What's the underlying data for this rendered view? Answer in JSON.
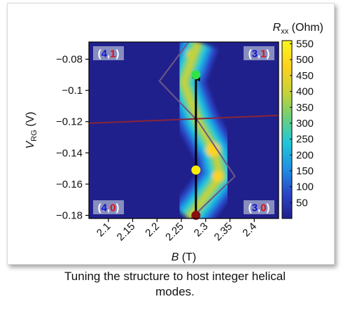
{
  "caption": {
    "line1": "Tuning the structure to host integer helical",
    "line2": "modes."
  },
  "chart_data": {
    "type": "heatmap",
    "xlabel_var": "B",
    "xlabel_unit": " (T)",
    "ylabel_var": "V",
    "ylabel_sub": "RG",
    "ylabel_unit": " (V)",
    "xlim": [
      2.06,
      2.45
    ],
    "ylim": [
      -0.182,
      -0.069
    ],
    "x_ticks": [
      2.1,
      2.15,
      2.2,
      2.25,
      2.3,
      2.35,
      2.4
    ],
    "x_tick_labels": [
      "2.1",
      "2.15",
      "2.2",
      "2.25",
      "2.3",
      "2.35",
      "2.4"
    ],
    "y_ticks": [
      -0.08,
      -0.1,
      -0.12,
      -0.14,
      -0.16,
      -0.18
    ],
    "y_tick_labels": [
      "−0.08",
      "−0.1",
      "−0.12",
      "−0.14",
      "−0.16",
      "−0.18"
    ],
    "colorbar": {
      "title_var": "R",
      "title_sub": "xx",
      "title_unit": " (Ohm)",
      "min": 0,
      "max": 560,
      "ticks": [
        50,
        100,
        150,
        200,
        250,
        300,
        350,
        400,
        450,
        500,
        550
      ],
      "tick_labels": [
        "50",
        "100",
        "150",
        "200",
        "250",
        "300",
        "350",
        "400",
        "450",
        "500",
        "550"
      ],
      "colors": [
        "#20208c",
        "#2a46c8",
        "#1f90e4",
        "#20c8d8",
        "#6ed078",
        "#c8d236",
        "#ffd21e",
        "#f8f71a"
      ]
    },
    "ridge_center": [
      {
        "v": -0.069,
        "b": 2.285
      },
      {
        "v": -0.095,
        "b": 2.255
      },
      {
        "v": -0.12,
        "b": 2.285
      },
      {
        "v": -0.14,
        "b": 2.32
      },
      {
        "v": -0.155,
        "b": 2.33
      },
      {
        "v": -0.17,
        "b": 2.295
      },
      {
        "v": -0.182,
        "b": 2.265
      }
    ],
    "guide_line": [
      {
        "b": 2.265,
        "v": -0.069
      },
      {
        "b": 2.205,
        "v": -0.094
      },
      {
        "b": 2.285,
        "v": -0.12
      },
      {
        "b": 2.36,
        "v": -0.155
      },
      {
        "b": 2.27,
        "v": -0.182
      }
    ],
    "red_line": [
      {
        "b": 2.06,
        "v": -0.121
      },
      {
        "b": 2.45,
        "v": -0.116
      }
    ],
    "arrow": {
      "b": 2.28,
      "v_start": -0.18,
      "v_end": -0.092
    },
    "points": [
      {
        "b": 2.28,
        "v": -0.09,
        "color": "#2ee44a"
      },
      {
        "b": 2.28,
        "v": -0.151,
        "color": "#ffee00"
      },
      {
        "b": 2.28,
        "v": -0.18,
        "color": "#8b0e0e"
      }
    ],
    "corner_labels": [
      {
        "pos": "top-left",
        "n1": "4",
        "n2": "1"
      },
      {
        "pos": "top-right",
        "n1": "3",
        "n2": "1"
      },
      {
        "pos": "bottom-left",
        "n1": "4",
        "n2": "0"
      },
      {
        "pos": "bottom-right",
        "n1": "3",
        "n2": "0"
      }
    ],
    "label_colors": {
      "first": "#1010d0",
      "second": "#e01010",
      "bracket": "#ffffff",
      "box": "#9aa2c8"
    }
  }
}
